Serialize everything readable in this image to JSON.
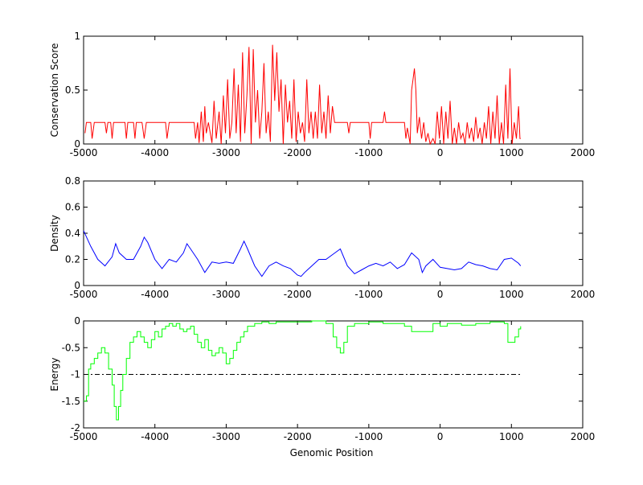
{
  "chart_data": [
    {
      "type": "line",
      "ylabel": "Conservation Score",
      "xlabel": "",
      "xlim": [
        -5000,
        2000
      ],
      "ylim": [
        0,
        1
      ],
      "xticks": [
        -5000,
        -4000,
        -3000,
        -2000,
        -1000,
        0,
        1000,
        2000
      ],
      "xtick_labels": [
        "-5000",
        "-4000",
        "-3000",
        "-2000",
        "-1000",
        "0",
        "1000",
        "2000"
      ],
      "yticks": [
        0,
        0.5,
        1
      ],
      "ytick_labels": [
        "0",
        "0.5",
        "1"
      ],
      "color": "#ff0000",
      "step": false,
      "series": [
        {
          "name": "conservation",
          "x": [
            -4980,
            -4960,
            -4900,
            -4880,
            -4850,
            -4700,
            -4680,
            -4660,
            -4620,
            -4600,
            -4580,
            -4420,
            -4400,
            -4380,
            -4300,
            -4280,
            -4260,
            -4180,
            -4150,
            -4120,
            -3850,
            -3830,
            -3800,
            -3450,
            -3430,
            -3400,
            -3380,
            -3350,
            -3320,
            -3300,
            -3280,
            -3250,
            -3200,
            -3170,
            -3140,
            -3100,
            -3070,
            -3040,
            -3010,
            -2980,
            -2950,
            -2920,
            -2890,
            -2860,
            -2830,
            -2800,
            -2770,
            -2740,
            -2710,
            -2680,
            -2650,
            -2620,
            -2590,
            -2560,
            -2530,
            -2500,
            -2470,
            -2440,
            -2410,
            -2380,
            -2350,
            -2320,
            -2290,
            -2260,
            -2230,
            -2200,
            -2170,
            -2140,
            -2110,
            -2080,
            -2050,
            -2020,
            -1990,
            -1960,
            -1930,
            -1900,
            -1870,
            -1840,
            -1810,
            -1780,
            -1750,
            -1720,
            -1690,
            -1660,
            -1630,
            -1600,
            -1570,
            -1540,
            -1510,
            -1480,
            -1460,
            -1300,
            -1280,
            -1260,
            -1000,
            -980,
            -960,
            -800,
            -780,
            -760,
            -500,
            -480,
            -460,
            -420,
            -400,
            -380,
            -360,
            -340,
            -320,
            -290,
            -260,
            -230,
            -200,
            -170,
            -140,
            -100,
            -70,
            -40,
            -10,
            20,
            50,
            80,
            110,
            140,
            170,
            200,
            230,
            260,
            290,
            320,
            350,
            380,
            410,
            440,
            470,
            500,
            530,
            560,
            590,
            620,
            650,
            680,
            710,
            740,
            770,
            800,
            830,
            860,
            890,
            920,
            950,
            980,
            1010,
            1040,
            1070,
            1100,
            1120,
            1130
          ],
          "y": [
            0.1,
            0.2,
            0.2,
            0.05,
            0.2,
            0.2,
            0.1,
            0.2,
            0.2,
            0.05,
            0.2,
            0.2,
            0.05,
            0.2,
            0.2,
            0.05,
            0.2,
            0.2,
            0.05,
            0.2,
            0.2,
            0.05,
            0.2,
            0.2,
            0.05,
            0.2,
            0.01,
            0.3,
            0.02,
            0.35,
            0.1,
            0.2,
            0.01,
            0.4,
            0.05,
            0.3,
            0.0,
            0.45,
            0.1,
            0.6,
            0.05,
            0.2,
            0.7,
            0.1,
            0.55,
            0.02,
            0.85,
            0.1,
            0.45,
            0.9,
            0.0,
            0.88,
            0.2,
            0.5,
            0.05,
            0.3,
            0.75,
            0.1,
            0.3,
            0.02,
            0.92,
            0.4,
            0.85,
            0.3,
            0.6,
            0.0,
            0.55,
            0.2,
            0.4,
            0.05,
            0.6,
            0.02,
            0.3,
            0.1,
            0.2,
            0.02,
            0.6,
            0.1,
            0.3,
            0.05,
            0.3,
            0.05,
            0.55,
            0.1,
            0.3,
            0.05,
            0.45,
            0.1,
            0.35,
            0.2,
            0.2,
            0.2,
            0.1,
            0.2,
            0.2,
            0.05,
            0.2,
            0.2,
            0.3,
            0.2,
            0.2,
            0.05,
            0.15,
            0.0,
            0.5,
            0.6,
            0.7,
            0.5,
            0.1,
            0.25,
            0.05,
            0.2,
            0.02,
            0.1,
            0.0,
            0.05,
            0.0,
            0.3,
            0.05,
            0.35,
            0.0,
            0.3,
            0.05,
            0.4,
            0.0,
            0.15,
            0.0,
            0.2,
            0.05,
            0.1,
            0.0,
            0.2,
            0.05,
            0.15,
            0.02,
            0.25,
            0.05,
            0.15,
            0.0,
            0.2,
            0.05,
            0.35,
            0.0,
            0.3,
            0.05,
            0.45,
            0.0,
            0.2,
            0.0,
            0.55,
            0.05,
            0.7,
            0.0,
            0.2,
            0.05,
            0.35,
            0.05,
            0.05
          ]
        }
      ]
    },
    {
      "type": "line",
      "ylabel": "Density",
      "xlabel": "",
      "xlim": [
        -5000,
        2000
      ],
      "ylim": [
        0,
        0.8
      ],
      "xticks": [
        -5000,
        -4000,
        -3000,
        -2000,
        -1000,
        0,
        1000,
        2000
      ],
      "xtick_labels": [
        "-5000",
        "-4000",
        "-3000",
        "-2000",
        "-1000",
        "0",
        "1000",
        "2000"
      ],
      "yticks": [
        0,
        0.2,
        0.4,
        0.6,
        0.8
      ],
      "ytick_labels": [
        "0",
        "0.2",
        "0.4",
        "0.6",
        "0.8"
      ],
      "color": "#0000ff",
      "step": false,
      "series": [
        {
          "name": "density",
          "x": [
            -5000,
            -4900,
            -4800,
            -4700,
            -4600,
            -4550,
            -4500,
            -4400,
            -4300,
            -4200,
            -4150,
            -4100,
            -4000,
            -3900,
            -3800,
            -3700,
            -3600,
            -3550,
            -3500,
            -3400,
            -3300,
            -3200,
            -3100,
            -3000,
            -2900,
            -2800,
            -2750,
            -2700,
            -2600,
            -2500,
            -2400,
            -2300,
            -2200,
            -2100,
            -2000,
            -1950,
            -1900,
            -1800,
            -1700,
            -1600,
            -1500,
            -1400,
            -1300,
            -1200,
            -1100,
            -1000,
            -900,
            -800,
            -700,
            -600,
            -500,
            -400,
            -300,
            -250,
            -200,
            -100,
            0,
            100,
            200,
            300,
            400,
            500,
            600,
            700,
            800,
            900,
            1000,
            1100,
            1130
          ],
          "y": [
            0.42,
            0.3,
            0.2,
            0.15,
            0.22,
            0.32,
            0.25,
            0.2,
            0.2,
            0.3,
            0.37,
            0.33,
            0.2,
            0.13,
            0.2,
            0.18,
            0.25,
            0.32,
            0.28,
            0.2,
            0.1,
            0.18,
            0.17,
            0.18,
            0.17,
            0.28,
            0.34,
            0.28,
            0.15,
            0.07,
            0.15,
            0.18,
            0.15,
            0.13,
            0.08,
            0.07,
            0.1,
            0.15,
            0.2,
            0.2,
            0.24,
            0.28,
            0.15,
            0.09,
            0.12,
            0.15,
            0.17,
            0.15,
            0.18,
            0.13,
            0.16,
            0.25,
            0.2,
            0.1,
            0.15,
            0.2,
            0.14,
            0.13,
            0.12,
            0.13,
            0.18,
            0.16,
            0.15,
            0.13,
            0.12,
            0.2,
            0.21,
            0.17,
            0.15
          ]
        }
      ]
    },
    {
      "type": "line",
      "ylabel": "Energy",
      "xlabel": "Genomic Position",
      "xlim": [
        -5000,
        2000
      ],
      "ylim": [
        -2,
        0
      ],
      "xticks": [
        -5000,
        -4000,
        -3000,
        -2000,
        -1000,
        0,
        1000,
        2000
      ],
      "xtick_labels": [
        "-5000",
        "-4000",
        "-3000",
        "-2000",
        "-1000",
        "0",
        "1000",
        "2000"
      ],
      "yticks": [
        -2,
        -1.5,
        -1,
        -0.5,
        0
      ],
      "ytick_labels": [
        "-2",
        "-1.5",
        "-1",
        "-0.5",
        "0"
      ],
      "color": "#00ff00",
      "step": true,
      "threshold": {
        "y": -1,
        "x": [
          -5000,
          1130
        ],
        "color": "#000000",
        "style": "dash-dot"
      },
      "series": [
        {
          "name": "energy",
          "x": [
            -5000,
            -4960,
            -4930,
            -4900,
            -4850,
            -4800,
            -4750,
            -4700,
            -4650,
            -4600,
            -4570,
            -4540,
            -4510,
            -4480,
            -4450,
            -4400,
            -4350,
            -4300,
            -4250,
            -4200,
            -4150,
            -4100,
            -4050,
            -4000,
            -3950,
            -3900,
            -3850,
            -3800,
            -3750,
            -3700,
            -3650,
            -3600,
            -3550,
            -3500,
            -3450,
            -3400,
            -3350,
            -3300,
            -3250,
            -3200,
            -3150,
            -3100,
            -3050,
            -3000,
            -2950,
            -2900,
            -2850,
            -2800,
            -2750,
            -2700,
            -2600,
            -2500,
            -2400,
            -2300,
            -2000,
            -1800,
            -1600,
            -1500,
            -1450,
            -1400,
            -1350,
            -1300,
            -1200,
            -1000,
            -800,
            -500,
            -400,
            -200,
            -100,
            0,
            100,
            300,
            500,
            700,
            900,
            950,
            1050,
            1100,
            1130
          ],
          "y": [
            -1.5,
            -1.4,
            -0.9,
            -0.8,
            -0.7,
            -0.6,
            -0.5,
            -0.6,
            -0.9,
            -1.2,
            -1.6,
            -1.85,
            -1.6,
            -1.3,
            -1.0,
            -0.7,
            -0.4,
            -0.3,
            -0.2,
            -0.3,
            -0.4,
            -0.5,
            -0.35,
            -0.2,
            -0.3,
            -0.15,
            -0.1,
            -0.05,
            -0.1,
            -0.05,
            -0.15,
            -0.2,
            -0.15,
            -0.1,
            -0.25,
            -0.4,
            -0.5,
            -0.35,
            -0.55,
            -0.65,
            -0.6,
            -0.5,
            -0.6,
            -0.8,
            -0.7,
            -0.55,
            -0.4,
            -0.3,
            -0.2,
            -0.1,
            -0.05,
            -0.02,
            -0.05,
            -0.02,
            -0.02,
            0,
            -0.05,
            -0.3,
            -0.5,
            -0.6,
            -0.4,
            -0.1,
            -0.05,
            -0.02,
            -0.05,
            -0.1,
            -0.2,
            -0.2,
            -0.05,
            -0.1,
            -0.05,
            -0.08,
            -0.05,
            -0.02,
            -0.05,
            -0.4,
            -0.3,
            -0.15,
            -0.1
          ]
        }
      ]
    }
  ]
}
